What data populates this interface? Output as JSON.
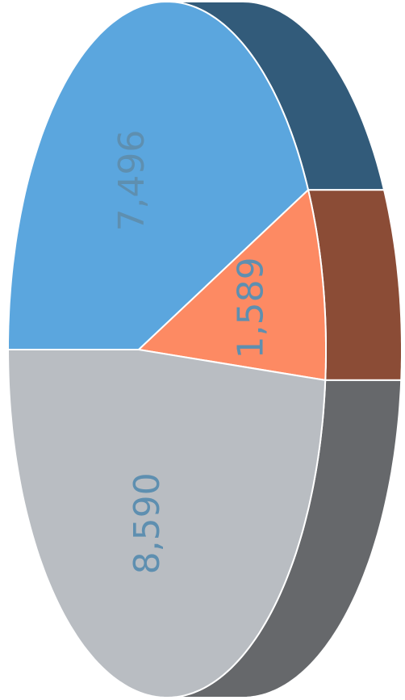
{
  "chart_data": {
    "type": "pie",
    "three_d": true,
    "values": [
      7496,
      1589,
      8590
    ],
    "value_labels": [
      "7,496",
      "1,589",
      "8,590"
    ],
    "colors": [
      "#5ba6de",
      "#fd8a63",
      "#b9bdc2"
    ]
  }
}
